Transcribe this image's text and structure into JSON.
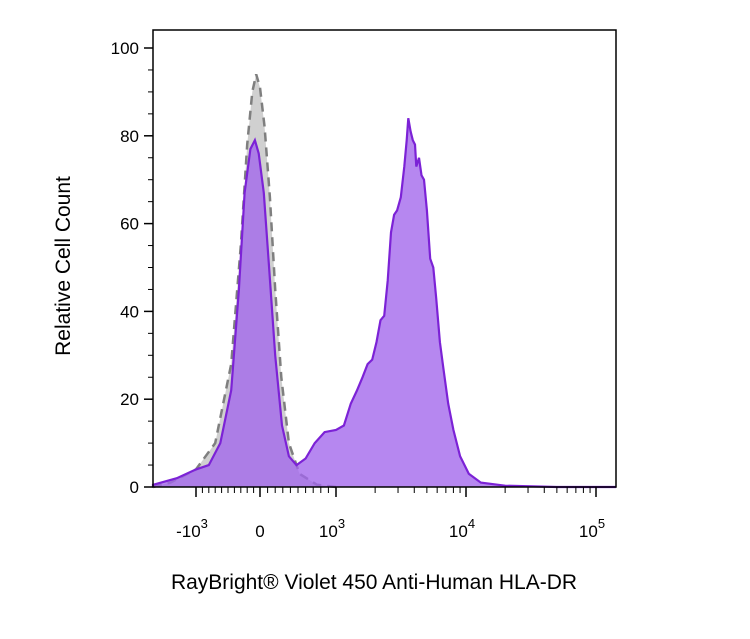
{
  "chart_data": {
    "type": "area",
    "title": "",
    "xlabel": "RayBright® Violet 450 Anti-Human HLA-DR",
    "ylabel": "Relative Cell Count",
    "x_scale": "biexponential",
    "ylim": [
      0,
      100
    ],
    "y_ticks": [
      "0",
      "20",
      "40",
      "60",
      "80",
      "100"
    ],
    "x_ticks": [
      {
        "base": "-10",
        "exp": "3"
      },
      {
        "base": "0",
        "exp": ""
      },
      {
        "base": "10",
        "exp": "3"
      },
      {
        "base": "10",
        "exp": "4"
      },
      {
        "base": "10",
        "exp": "5"
      }
    ],
    "grid": false,
    "legend": "none",
    "series": [
      {
        "style": "gray dashed filled histogram",
        "color": "#7f7f7f",
        "fill": "#c8c8c8",
        "points": [
          [
            -1900,
            0
          ],
          [
            -1400,
            1
          ],
          [
            -1000,
            4
          ],
          [
            -700,
            10
          ],
          [
            -450,
            28
          ],
          [
            -300,
            55
          ],
          [
            -200,
            78
          ],
          [
            -120,
            90
          ],
          [
            -60,
            94
          ],
          [
            0,
            91
          ],
          [
            60,
            82
          ],
          [
            130,
            66
          ],
          [
            200,
            45
          ],
          [
            280,
            25
          ],
          [
            380,
            10
          ],
          [
            520,
            3
          ],
          [
            750,
            0.5
          ],
          [
            1000,
            0
          ]
        ]
      },
      {
        "style": "purple filled histogram",
        "color": "#7c22d6",
        "fill": "#a265ec",
        "points": [
          [
            -2100,
            0
          ],
          [
            -1700,
            0.5
          ],
          [
            -1300,
            2
          ],
          [
            -1000,
            4
          ],
          [
            -800,
            5
          ],
          [
            -620,
            10
          ],
          [
            -450,
            22
          ],
          [
            -330,
            45
          ],
          [
            -240,
            67
          ],
          [
            -150,
            77
          ],
          [
            -80,
            79
          ],
          [
            -20,
            76
          ],
          [
            50,
            67
          ],
          [
            120,
            50
          ],
          [
            200,
            30
          ],
          [
            290,
            14
          ],
          [
            380,
            7
          ],
          [
            480,
            5
          ],
          [
            600,
            6.5
          ],
          [
            720,
            10
          ],
          [
            850,
            12.5
          ],
          [
            1000,
            13
          ],
          [
            1150,
            14
          ],
          [
            1300,
            19
          ],
          [
            1450,
            22
          ],
          [
            1600,
            25
          ],
          [
            1750,
            28
          ],
          [
            1900,
            29
          ],
          [
            2050,
            33
          ],
          [
            2200,
            38
          ],
          [
            2350,
            39
          ],
          [
            2500,
            47
          ],
          [
            2650,
            58
          ],
          [
            2800,
            62
          ],
          [
            2950,
            63
          ],
          [
            3150,
            66
          ],
          [
            3350,
            73
          ],
          [
            3500,
            79
          ],
          [
            3600,
            84
          ],
          [
            3750,
            81
          ],
          [
            3900,
            79
          ],
          [
            4050,
            78
          ],
          [
            4150,
            73
          ],
          [
            4350,
            75
          ],
          [
            4550,
            71
          ],
          [
            4750,
            70
          ],
          [
            5000,
            63
          ],
          [
            5300,
            52
          ],
          [
            5600,
            50
          ],
          [
            5900,
            43
          ],
          [
            6300,
            33
          ],
          [
            6700,
            27
          ],
          [
            7300,
            19
          ],
          [
            8000,
            13
          ],
          [
            9000,
            7
          ],
          [
            10500,
            3
          ],
          [
            13000,
            1
          ],
          [
            20000,
            0.3
          ],
          [
            50000,
            0
          ],
          [
            200000,
            0
          ]
        ]
      }
    ]
  }
}
